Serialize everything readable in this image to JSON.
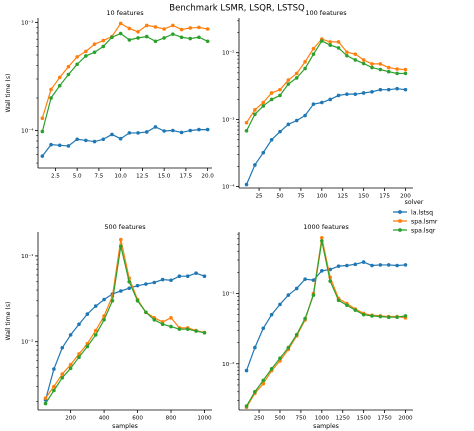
{
  "figure": {
    "title": "Benchmark LSMR, LSQR, LSTSQ"
  },
  "colors": {
    "la.lstsq": "#1f77b4",
    "spa.lsmr": "#ff7f0e",
    "spa.lsqr": "#2ca02c"
  },
  "legend": {
    "title": "solver",
    "placement": "right",
    "entries": [
      "la.lstsq",
      "spa.lsmr",
      "spa.lsqr"
    ]
  },
  "chart_data": [
    {
      "type": "line",
      "title": "10 features",
      "xlabel": "",
      "ylabel": "Wall time (s)",
      "yscale": "log",
      "xlim": [
        0.5,
        20.5
      ],
      "ylim": [
        4.5e-05,
        0.0011
      ],
      "xticks": [
        2.5,
        5.0,
        7.5,
        10.0,
        12.5,
        15.0,
        17.5,
        20.0
      ],
      "xtick_labels": [
        "2.5",
        "5.0",
        "7.5",
        "10.0",
        "12.5",
        "15.0",
        "17.5",
        "20.0"
      ],
      "yticks": [
        0.0001,
        0.001
      ],
      "ytick_labels": [
        "10⁻⁴",
        "10⁻³"
      ],
      "x": [
        1,
        2,
        3,
        4,
        5,
        6,
        7,
        8,
        9,
        10,
        11,
        12,
        13,
        14,
        15,
        16,
        17,
        18,
        19,
        20
      ],
      "series": [
        {
          "name": "la.lstsq",
          "values": [
            5.8e-05,
            7.4e-05,
            7.3e-05,
            7.2e-05,
            8.3e-05,
            8.1e-05,
            7.9e-05,
            8.3e-05,
            9.2e-05,
            8.4e-05,
            9.5e-05,
            9.5e-05,
            9.7e-05,
            0.000108,
            9.9e-05,
            0.0001,
            9.6e-05,
            0.0001,
            0.000102,
            0.000102
          ]
        },
        {
          "name": "spa.lsmr",
          "values": [
            0.00013,
            0.00024,
            0.00031,
            0.00039,
            0.00048,
            0.00054,
            0.00063,
            0.00068,
            0.00074,
            0.00098,
            0.00088,
            0.00082,
            0.00094,
            0.00091,
            0.00087,
            0.00094,
            0.00086,
            0.00089,
            0.0009,
            0.00087
          ]
        },
        {
          "name": "spa.lsqr",
          "values": [
            9.8e-05,
            0.0002,
            0.00026,
            0.00033,
            0.00041,
            0.00049,
            0.00053,
            0.0006,
            0.00073,
            0.00079,
            0.00069,
            0.00072,
            0.00074,
            0.00067,
            0.00072,
            0.00078,
            0.00073,
            0.00071,
            0.00073,
            0.00067
          ]
        }
      ]
    },
    {
      "type": "line",
      "title": "100 features",
      "xlabel": "",
      "ylabel": "",
      "yscale": "log",
      "xlim": [
        1,
        209
      ],
      "ylim": [
        9.5e-05,
        0.033
      ],
      "xticks": [
        25,
        50,
        75,
        100,
        125,
        150,
        175,
        200
      ],
      "xtick_labels": [
        "25",
        "50",
        "75",
        "100",
        "125",
        "150",
        "175",
        "200"
      ],
      "yticks": [
        0.0001,
        0.001,
        0.01
      ],
      "ytick_labels": [
        "10⁻⁴",
        "10⁻³",
        "10⁻²"
      ],
      "x": [
        10,
        20,
        30,
        40,
        50,
        60,
        70,
        80,
        90,
        100,
        110,
        120,
        130,
        140,
        150,
        160,
        170,
        180,
        190,
        200
      ],
      "series": [
        {
          "name": "la.lstsq",
          "values": [
            0.000107,
            0.00021,
            0.00032,
            0.0005,
            0.00066,
            0.00085,
            0.00097,
            0.00115,
            0.0017,
            0.0018,
            0.002,
            0.0023,
            0.0024,
            0.0024,
            0.0025,
            0.0026,
            0.0028,
            0.0028,
            0.0029,
            0.0028
          ]
        },
        {
          "name": "spa.lsmr",
          "values": [
            0.0009,
            0.0014,
            0.0018,
            0.0025,
            0.0028,
            0.0039,
            0.0049,
            0.0073,
            0.0115,
            0.016,
            0.0145,
            0.0145,
            0.0102,
            0.0095,
            0.0078,
            0.0068,
            0.0068,
            0.006,
            0.0057,
            0.0056
          ]
        },
        {
          "name": "spa.lsqr",
          "values": [
            0.00068,
            0.0012,
            0.0016,
            0.002,
            0.0023,
            0.0034,
            0.0042,
            0.0058,
            0.0095,
            0.015,
            0.013,
            0.0118,
            0.009,
            0.0078,
            0.0069,
            0.006,
            0.0056,
            0.0052,
            0.0049,
            0.0049
          ]
        }
      ]
    },
    {
      "type": "line",
      "title": "500 features",
      "xlabel": "samples",
      "ylabel": "Wall time (s)",
      "yscale": "log",
      "xlim": [
        5,
        1045
      ],
      "ylim": [
        0.0016,
        0.19
      ],
      "xticks": [
        200,
        400,
        600,
        800,
        1000
      ],
      "xtick_labels": [
        "200",
        "400",
        "600",
        "800",
        "1000"
      ],
      "yticks": [
        0.01,
        0.1
      ],
      "ytick_labels": [
        "10⁻²",
        "10⁻¹"
      ],
      "x": [
        50,
        100,
        150,
        200,
        250,
        300,
        350,
        400,
        450,
        500,
        550,
        600,
        650,
        700,
        750,
        800,
        850,
        900,
        950,
        1000
      ],
      "series": [
        {
          "name": "la.lstsq",
          "values": [
            0.0021,
            0.0048,
            0.0085,
            0.012,
            0.016,
            0.021,
            0.026,
            0.031,
            0.036,
            0.039,
            0.042,
            0.045,
            0.047,
            0.049,
            0.053,
            0.052,
            0.058,
            0.058,
            0.063,
            0.058
          ]
        },
        {
          "name": "spa.lsmr",
          "values": [
            0.0022,
            0.003,
            0.0042,
            0.0054,
            0.0072,
            0.0095,
            0.0135,
            0.02,
            0.034,
            0.155,
            0.055,
            0.031,
            0.022,
            0.019,
            0.017,
            0.019,
            0.0145,
            0.0145,
            0.0135,
            0.0128
          ]
        },
        {
          "name": "spa.lsqr",
          "values": [
            0.0019,
            0.0027,
            0.0038,
            0.0049,
            0.0066,
            0.0088,
            0.012,
            0.018,
            0.03,
            0.13,
            0.05,
            0.03,
            0.022,
            0.018,
            0.016,
            0.015,
            0.014,
            0.014,
            0.0133,
            0.0127
          ]
        }
      ]
    },
    {
      "type": "line",
      "title": "1000 features",
      "xlabel": "samples",
      "ylabel": "",
      "yscale": "log",
      "xlim": [
        10,
        2090
      ],
      "ylim": [
        0.0022,
        0.75
      ],
      "xticks": [
        250,
        500,
        750,
        1000,
        1250,
        1500,
        1750,
        2000
      ],
      "xtick_labels": [
        "250",
        "500",
        "750",
        "1000",
        "1250",
        "1500",
        "1750",
        "2000"
      ],
      "yticks": [
        0.01,
        0.1
      ],
      "ytick_labels": [
        "10⁻²",
        "10⁻¹"
      ],
      "x": [
        100,
        200,
        300,
        400,
        500,
        600,
        700,
        800,
        900,
        1000,
        1100,
        1200,
        1300,
        1400,
        1500,
        1600,
        1700,
        1800,
        1900,
        2000
      ],
      "series": [
        {
          "name": "la.lstsq",
          "values": [
            0.008,
            0.017,
            0.032,
            0.05,
            0.07,
            0.095,
            0.118,
            0.16,
            0.155,
            0.21,
            0.22,
            0.245,
            0.25,
            0.26,
            0.28,
            0.25,
            0.255,
            0.255,
            0.25,
            0.255
          ]
        },
        {
          "name": "spa.lsmr",
          "values": [
            0.0024,
            0.0038,
            0.0052,
            0.008,
            0.011,
            0.016,
            0.025,
            0.042,
            0.1,
            0.62,
            0.17,
            0.085,
            0.072,
            0.06,
            0.052,
            0.049,
            0.048,
            0.047,
            0.047,
            0.045
          ]
        },
        {
          "name": "spa.lsqr",
          "values": [
            0.0025,
            0.004,
            0.0058,
            0.0085,
            0.012,
            0.017,
            0.026,
            0.044,
            0.095,
            0.56,
            0.15,
            0.08,
            0.068,
            0.058,
            0.05,
            0.048,
            0.047,
            0.046,
            0.046,
            0.048
          ]
        }
      ]
    }
  ]
}
